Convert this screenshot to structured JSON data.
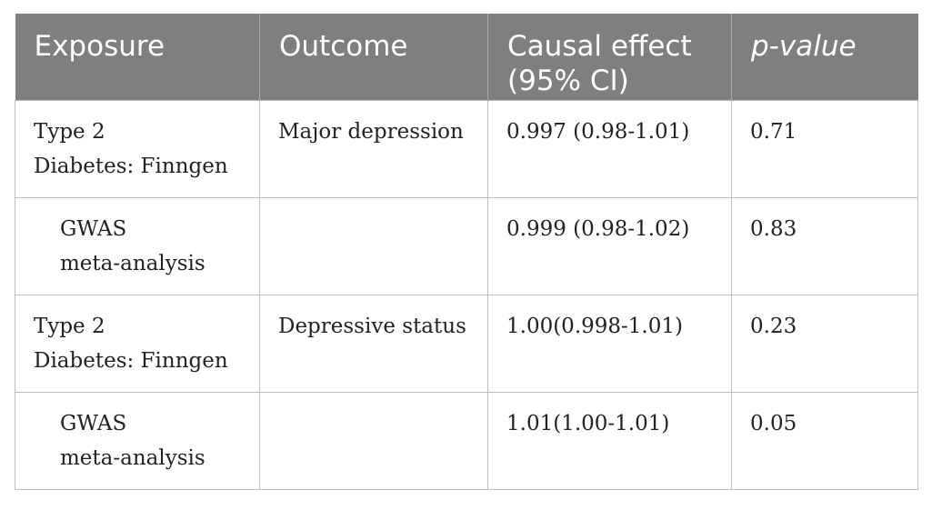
{
  "table": {
    "headers": {
      "exposure": "Exposure",
      "outcome": "Outcome",
      "causal_effect_line1": "Causal effect",
      "causal_effect_line2": "(95% CI)",
      "p_value": "p-value"
    },
    "rows": [
      {
        "exposure_line1": "Type 2",
        "exposure_line2": "Diabetes: Finngen",
        "outcome": "Major depression",
        "causal_effect": "0.997 (0.98-1.01)",
        "p_value": "0.71"
      },
      {
        "exposure_line1": "GWAS",
        "exposure_line2": "meta-analysis",
        "outcome": "",
        "causal_effect": "0.999 (0.98-1.02)",
        "p_value": "0.83"
      },
      {
        "exposure_line1": "Type 2",
        "exposure_line2": "Diabetes: Finngen",
        "outcome": "Depressive status",
        "causal_effect": "1.00(0.998-1.01)",
        "p_value": "0.23"
      },
      {
        "exposure_line1": "GWAS",
        "exposure_line2": "meta-analysis",
        "outcome": "",
        "causal_effect": "1.01(1.00-1.01)",
        "p_value": "0.05"
      }
    ]
  }
}
